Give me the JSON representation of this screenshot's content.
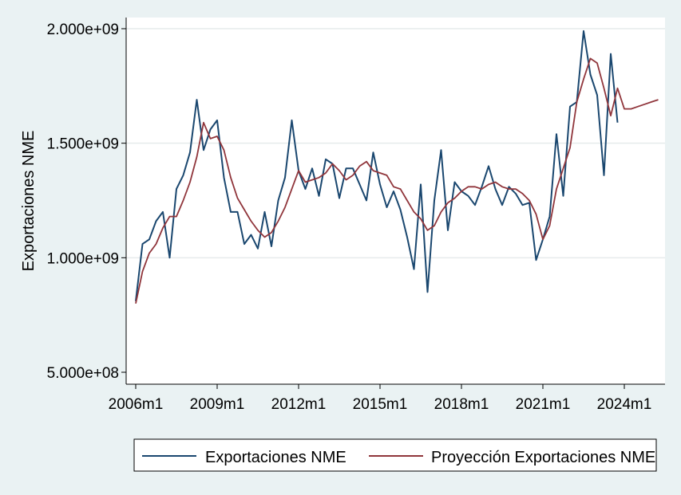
{
  "chart_data": {
    "type": "line",
    "ylabel": "Exportaciones NME",
    "xlabel": "",
    "xlim": [
      "2006m1",
      "2025m6"
    ],
    "ylim": [
      500000000,
      2000000000
    ],
    "y_ticks": [
      500000000,
      1000000000,
      1500000000,
      2000000000
    ],
    "y_tick_labels": [
      "5.000e+08",
      "1.000e+09",
      "1.500e+09",
      "2.000e+09"
    ],
    "x_ticks": [
      "2006m1",
      "2009m1",
      "2012m1",
      "2015m1",
      "2018m1",
      "2021m1",
      "2024m1"
    ],
    "grid": "horizontal",
    "legend_position": "bottom",
    "series": [
      {
        "name": "Exportaciones NME",
        "color": "#1a476f",
        "x": [
          "2006m1",
          "2006m4",
          "2006m7",
          "2006m10",
          "2007m1",
          "2007m4",
          "2007m7",
          "2007m10",
          "2008m1",
          "2008m4",
          "2008m7",
          "2008m10",
          "2009m1",
          "2009m4",
          "2009m7",
          "2009m10",
          "2010m1",
          "2010m4",
          "2010m7",
          "2010m10",
          "2011m1",
          "2011m4",
          "2011m7",
          "2011m10",
          "2012m1",
          "2012m4",
          "2012m7",
          "2012m10",
          "2013m1",
          "2013m4",
          "2013m7",
          "2013m10",
          "2014m1",
          "2014m4",
          "2014m7",
          "2014m10",
          "2015m1",
          "2015m4",
          "2015m7",
          "2015m10",
          "2016m1",
          "2016m4",
          "2016m7",
          "2016m10",
          "2017m1",
          "2017m4",
          "2017m7",
          "2017m10",
          "2018m1",
          "2018m4",
          "2018m7",
          "2018m10",
          "2019m1",
          "2019m4",
          "2019m7",
          "2019m10",
          "2020m1",
          "2020m4",
          "2020m7",
          "2020m10",
          "2021m1",
          "2021m4",
          "2021m7",
          "2021m10",
          "2022m1",
          "2022m4",
          "2022m7",
          "2022m10",
          "2023m1",
          "2023m4",
          "2023m7",
          "2023m10"
        ],
        "values": [
          810000000,
          1060000000,
          1080000000,
          1160000000,
          1200000000,
          1000000000,
          1300000000,
          1360000000,
          1460000000,
          1690000000,
          1470000000,
          1560000000,
          1600000000,
          1350000000,
          1200000000,
          1200000000,
          1060000000,
          1100000000,
          1040000000,
          1200000000,
          1050000000,
          1250000000,
          1350000000,
          1600000000,
          1380000000,
          1300000000,
          1390000000,
          1270000000,
          1430000000,
          1410000000,
          1260000000,
          1390000000,
          1390000000,
          1320000000,
          1250000000,
          1460000000,
          1320000000,
          1220000000,
          1290000000,
          1210000000,
          1090000000,
          950000000,
          1320000000,
          850000000,
          1250000000,
          1470000000,
          1120000000,
          1330000000,
          1290000000,
          1270000000,
          1230000000,
          1310000000,
          1400000000,
          1300000000,
          1230000000,
          1310000000,
          1280000000,
          1230000000,
          1240000000,
          990000000,
          1080000000,
          1180000000,
          1540000000,
          1270000000,
          1660000000,
          1680000000,
          1990000000,
          1800000000,
          1710000000,
          1360000000,
          1890000000,
          1590000000
        ]
      },
      {
        "name": "Proyección Exportaciones NME",
        "color": "#90353b",
        "x": [
          "2006m1",
          "2006m4",
          "2006m7",
          "2006m10",
          "2007m1",
          "2007m4",
          "2007m7",
          "2007m10",
          "2008m1",
          "2008m4",
          "2008m7",
          "2008m10",
          "2009m1",
          "2009m4",
          "2009m7",
          "2009m10",
          "2010m1",
          "2010m4",
          "2010m7",
          "2010m10",
          "2011m1",
          "2011m4",
          "2011m7",
          "2011m10",
          "2012m1",
          "2012m4",
          "2012m7",
          "2012m10",
          "2013m1",
          "2013m4",
          "2013m7",
          "2013m10",
          "2014m1",
          "2014m4",
          "2014m7",
          "2014m10",
          "2015m1",
          "2015m4",
          "2015m7",
          "2015m10",
          "2016m1",
          "2016m4",
          "2016m7",
          "2016m10",
          "2017m1",
          "2017m4",
          "2017m7",
          "2017m10",
          "2018m1",
          "2018m4",
          "2018m7",
          "2018m10",
          "2019m1",
          "2019m4",
          "2019m7",
          "2019m10",
          "2020m1",
          "2020m4",
          "2020m7",
          "2020m10",
          "2021m1",
          "2021m4",
          "2021m7",
          "2021m10",
          "2022m1",
          "2022m4",
          "2022m7",
          "2022m10",
          "2023m1",
          "2023m4",
          "2023m7",
          "2023m10",
          "2024m1",
          "2024m4",
          "2024m7",
          "2024m10",
          "2025m1",
          "2025m4"
        ],
        "values": [
          800000000,
          940000000,
          1020000000,
          1060000000,
          1130000000,
          1180000000,
          1180000000,
          1250000000,
          1330000000,
          1440000000,
          1590000000,
          1520000000,
          1530000000,
          1470000000,
          1350000000,
          1260000000,
          1210000000,
          1160000000,
          1120000000,
          1090000000,
          1110000000,
          1160000000,
          1220000000,
          1300000000,
          1380000000,
          1330000000,
          1340000000,
          1350000000,
          1370000000,
          1410000000,
          1380000000,
          1340000000,
          1360000000,
          1400000000,
          1420000000,
          1380000000,
          1370000000,
          1360000000,
          1310000000,
          1300000000,
          1250000000,
          1200000000,
          1170000000,
          1120000000,
          1140000000,
          1200000000,
          1240000000,
          1260000000,
          1290000000,
          1310000000,
          1310000000,
          1300000000,
          1320000000,
          1330000000,
          1310000000,
          1300000000,
          1300000000,
          1280000000,
          1250000000,
          1190000000,
          1080000000,
          1140000000,
          1300000000,
          1390000000,
          1480000000,
          1680000000,
          1780000000,
          1870000000,
          1850000000,
          1740000000,
          1620000000,
          1740000000,
          1650000000,
          1650000000,
          1660000000,
          1670000000,
          1680000000,
          1690000000
        ]
      }
    ]
  }
}
